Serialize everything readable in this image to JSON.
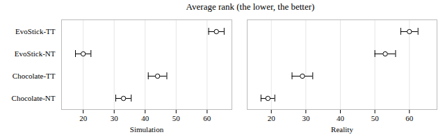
{
  "chart_data": [
    {
      "type": "errorbar",
      "title": "Average rank (the lower, the better)",
      "orientation": "horizontal",
      "categories": [
        "EvoStick-TT",
        "EvoStick-NT",
        "Chocolate-TT",
        "Chocolate-NT"
      ],
      "values": [
        63.0,
        20.0,
        44.0,
        33.0
      ],
      "errors": [
        2.5,
        2.5,
        3.0,
        2.5
      ],
      "xlabel": "Simulation",
      "xlim": [
        13,
        68
      ],
      "xticks": [
        20,
        30,
        40,
        50,
        60
      ],
      "grid": true,
      "marker": "circle",
      "color": "black"
    },
    {
      "type": "errorbar",
      "orientation": "horizontal",
      "categories": [
        "EvoStick-TT",
        "EvoStick-NT",
        "Chocolate-TT",
        "Chocolate-NT"
      ],
      "values": [
        60.0,
        53.0,
        29.0,
        19.0
      ],
      "errors": [
        2.5,
        3.0,
        3.0,
        2.0
      ],
      "xlabel": "Reality",
      "xlim": [
        13,
        68
      ],
      "xticks": [
        20,
        30,
        40,
        50,
        60
      ],
      "grid": true,
      "marker": "circle",
      "color": "black",
      "tick_labels": "x"
    }
  ]
}
